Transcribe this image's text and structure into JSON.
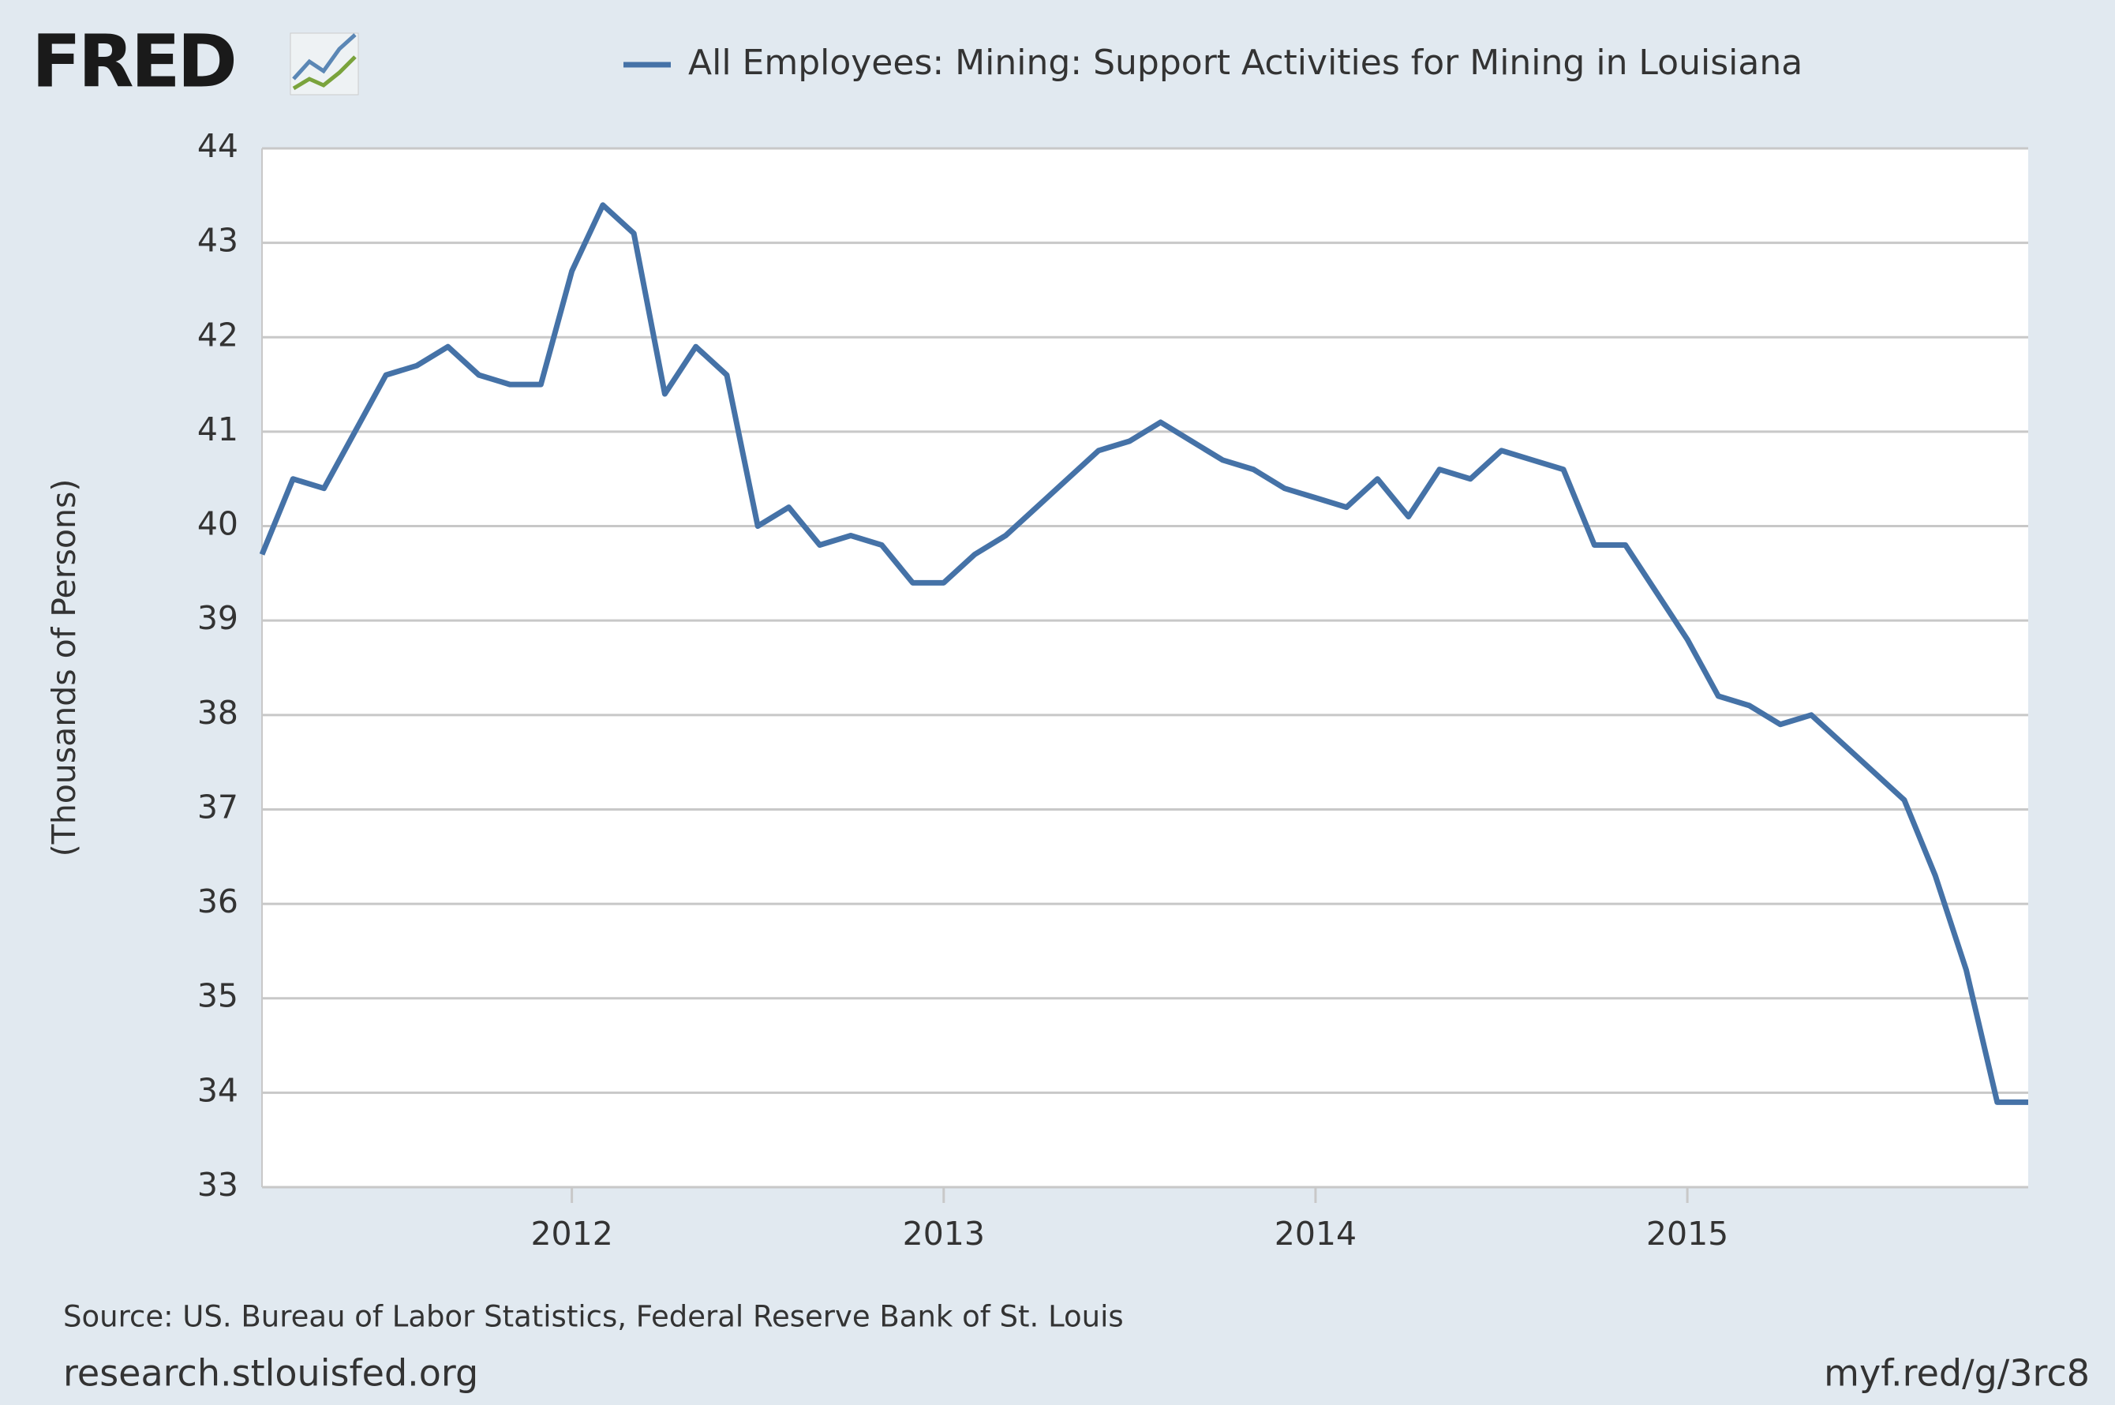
{
  "logo": "FRED",
  "chart_data": {
    "type": "line",
    "title": "All Employees: Mining: Support Activities for Mining in Louisiana",
    "y_label": "(Thousands of Persons)",
    "source": "Source: US. Bureau of Labor Statistics, Federal Reserve Bank of St. Louis",
    "site": "research.stlouisfed.org",
    "short_url": "myf.red/g/3rc8",
    "x": [
      "2011-03",
      "2011-04",
      "2011-05",
      "2011-06",
      "2011-07",
      "2011-08",
      "2011-09",
      "2011-10",
      "2011-11",
      "2011-12",
      "2012-01",
      "2012-02",
      "2012-03",
      "2012-04",
      "2012-05",
      "2012-06",
      "2012-07",
      "2012-08",
      "2012-09",
      "2012-10",
      "2012-11",
      "2012-12",
      "2013-01",
      "2013-02",
      "2013-03",
      "2013-04",
      "2013-05",
      "2013-06",
      "2013-07",
      "2013-08",
      "2013-09",
      "2013-10",
      "2013-11",
      "2013-12",
      "2014-01",
      "2014-02",
      "2014-03",
      "2014-04",
      "2014-05",
      "2014-06",
      "2014-07",
      "2014-08",
      "2014-09",
      "2014-10",
      "2014-11",
      "2014-12",
      "2015-01",
      "2015-02",
      "2015-03",
      "2015-04",
      "2015-05",
      "2015-06",
      "2015-07",
      "2015-08",
      "2015-09",
      "2015-10",
      "2015-11",
      "2015-12"
    ],
    "series": [
      {
        "name": "All Employees: Mining: Support Activities for Mining in Louisiana",
        "color": "#4572a7",
        "values": [
          39.7,
          40.5,
          40.4,
          41.0,
          41.6,
          41.7,
          41.9,
          41.6,
          41.5,
          41.5,
          42.7,
          43.4,
          43.1,
          41.4,
          41.9,
          41.6,
          40.0,
          40.2,
          39.8,
          39.9,
          39.8,
          39.4,
          39.4,
          39.7,
          39.9,
          40.2,
          40.5,
          40.8,
          40.9,
          41.1,
          40.9,
          40.7,
          40.6,
          40.4,
          40.3,
          40.2,
          40.5,
          40.1,
          40.6,
          40.5,
          40.8,
          40.7,
          40.6,
          39.8,
          39.8,
          39.3,
          38.8,
          38.2,
          38.1,
          37.9,
          38.0,
          37.7,
          37.4,
          37.1,
          36.3,
          35.3,
          33.9,
          33.9
        ]
      }
    ],
    "xlim": [
      "2011-03",
      "2015-12"
    ],
    "xticks": [
      {
        "value": "2012-01",
        "label": "2012"
      },
      {
        "value": "2013-01",
        "label": "2013"
      },
      {
        "value": "2014-01",
        "label": "2014"
      },
      {
        "value": "2015-01",
        "label": "2015"
      }
    ],
    "ylim": [
      33,
      44
    ],
    "yticks": [
      33,
      34,
      35,
      36,
      37,
      38,
      39,
      40,
      41,
      42,
      43,
      44
    ],
    "grid": true
  }
}
